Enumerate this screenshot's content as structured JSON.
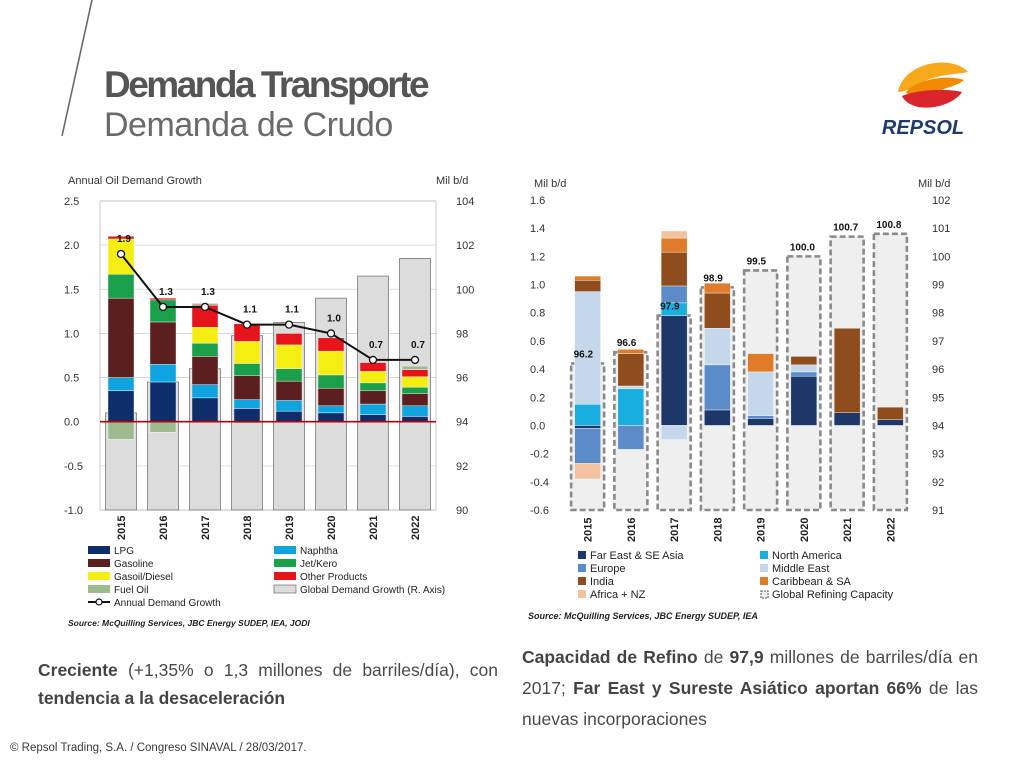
{
  "header": {
    "title": "Demanda Transporte",
    "subtitle": "Demanda de Crudo",
    "logo_text": "REPSOL"
  },
  "colors": {
    "brand_orange": "#f5a623",
    "brand_red": "#d52b1e",
    "brand_navy": "#1d3a72",
    "line_red": "#c00000",
    "bar_gray": "#dcdcdc"
  },
  "chart_data": [
    {
      "type": "bar",
      "stacked": true,
      "title": "Annual Oil Demand Growth",
      "ylabel_right": "Mil b/d",
      "categories": [
        "2015",
        "2016",
        "2017",
        "2018",
        "2019",
        "2020",
        "2021",
        "2022"
      ],
      "ylim": [
        -1.0,
        2.5
      ],
      "yticks": [
        "2.5",
        "2.0",
        "1.5",
        "1.0",
        "0.5",
        "0.0",
        "-0.5",
        "-1.0"
      ],
      "ylim_right": [
        90,
        104
      ],
      "yticks_right": [
        "104",
        "102",
        "100",
        "98",
        "96",
        "94",
        "92",
        "90"
      ],
      "series": [
        {
          "name": "LPG",
          "color": "#0d2d6b",
          "values": [
            0.35,
            0.45,
            0.27,
            0.15,
            0.12,
            0.1,
            0.08,
            0.06
          ]
        },
        {
          "name": "Naphtha",
          "color": "#0fa3e0",
          "values": [
            0.15,
            0.2,
            0.15,
            0.1,
            0.12,
            0.08,
            0.12,
            0.12
          ]
        },
        {
          "name": "Gasoline",
          "color": "#5c1f1f",
          "values": [
            0.9,
            0.48,
            0.32,
            0.27,
            0.22,
            0.2,
            0.15,
            0.14
          ]
        },
        {
          "name": "Jet/Kero",
          "color": "#1aa04a",
          "values": [
            0.27,
            0.25,
            0.15,
            0.14,
            0.14,
            0.15,
            0.09,
            0.07
          ]
        },
        {
          "name": "Gasoil/Diesel",
          "color": "#f5ee12",
          "values": [
            0.4,
            0.0,
            0.18,
            0.25,
            0.27,
            0.27,
            0.13,
            0.12
          ]
        },
        {
          "name": "Other Products",
          "color": "#e8141b",
          "values": [
            0.03,
            0.02,
            0.25,
            0.2,
            0.13,
            0.15,
            0.1,
            0.08
          ]
        },
        {
          "name": "Fuel Oil",
          "color": "#9cbb8f",
          "values": [
            -0.2,
            -0.12,
            0.02,
            -0.02,
            0.0,
            0.0,
            0.0,
            0.04
          ]
        }
      ],
      "global_demand": {
        "name": "Global Demand Growth (R. Axis)",
        "color": "#dcdcdc",
        "values": [
          94.4,
          95.8,
          96.4,
          97.9,
          98.5,
          99.6,
          100.6,
          101.4
        ]
      },
      "line": {
        "name": "Annual Demand Growth",
        "values": [
          1.9,
          1.3,
          1.3,
          1.1,
          1.1,
          1.0,
          0.7,
          0.7
        ],
        "labels": [
          "1.9",
          "1.3",
          "1.3",
          "1.1",
          "1.1",
          "1.0",
          "0.7",
          "0.7"
        ]
      },
      "source": "Source: McQuilling Services, JBC Energy SUDEP, IEA, JODI"
    },
    {
      "type": "bar",
      "stacked": true,
      "ylabel_left": "Mil b/d",
      "ylabel_right": "Mil b/d",
      "categories": [
        "2015",
        "2016",
        "2017",
        "2018",
        "2019",
        "2020",
        "2021",
        "2022"
      ],
      "ylim": [
        -0.6,
        1.6
      ],
      "yticks": [
        "1.6",
        "1.4",
        "1.2",
        "1.0",
        "0.8",
        "0.6",
        "0.4",
        "0.2",
        "0.0",
        "-0.2",
        "-0.4",
        "-0.6"
      ],
      "ylim_right": [
        91,
        102
      ],
      "yticks_right": [
        "102",
        "101",
        "100",
        "99",
        "98",
        "97",
        "96",
        "95",
        "94",
        "93",
        "92",
        "91"
      ],
      "series": [
        {
          "name": "Far East & SE Asia",
          "color": "#1c3768",
          "values": [
            -0.02,
            0.0,
            0.78,
            0.11,
            0.05,
            0.35,
            0.09,
            0.04
          ]
        },
        {
          "name": "North America",
          "color": "#19aee0",
          "values": [
            0.15,
            0.26,
            0.09,
            0.0,
            0.0,
            0.0,
            0.0,
            0.0
          ]
        },
        {
          "name": "Europe",
          "color": "#5b8cc9",
          "values": [
            -0.25,
            -0.17,
            0.12,
            0.32,
            0.02,
            0.03,
            0.0,
            0.0
          ]
        },
        {
          "name": "Middle East",
          "color": "#c5d7ea",
          "values": [
            0.8,
            0.02,
            -0.1,
            0.26,
            0.31,
            0.05,
            0.0,
            0.0
          ]
        },
        {
          "name": "India",
          "color": "#8f4d1e",
          "values": [
            0.08,
            0.23,
            0.24,
            0.25,
            0.0,
            0.06,
            0.6,
            0.09
          ]
        },
        {
          "name": "Caribbean & SA",
          "color": "#e07b2a",
          "values": [
            0.03,
            0.03,
            0.1,
            0.07,
            0.13,
            0.0,
            0.0,
            0.0
          ]
        },
        {
          "name": "Africa + NZ",
          "color": "#f5c2a0",
          "values": [
            -0.11,
            0.0,
            0.05,
            0.0,
            0.0,
            0.0,
            0.0,
            0.0
          ]
        }
      ],
      "capacity": {
        "name": "Global Refining Capacity",
        "values": [
          96.2,
          96.6,
          97.9,
          98.9,
          99.5,
          100.0,
          100.7,
          100.8
        ],
        "labels": [
          "96.2",
          "96.6",
          "97.9",
          "98.9",
          "99.5",
          "100.0",
          "100.7",
          "100.8"
        ]
      },
      "source": "Source: McQuilling Services, JBC Energy SUDEP, IEA"
    }
  ],
  "captions": {
    "left": {
      "p1": "Creciente",
      "p2": " (+1,35% o 1,3 millones de barriles/día), con ",
      "p3": "tendencia a la desaceleración"
    },
    "right": {
      "p1": "Capacidad de Refino",
      "p2": " de ",
      "p3": "97,9",
      "p4": " millones de barriles/día en 2017; ",
      "p5": "Far East y Sureste Asiático aportan 66%",
      "p6": " de las nuevas incorporaciones"
    }
  },
  "footer": "© Repsol Trading, S.A. /  Congreso SINAVAL / 28/03/2017."
}
